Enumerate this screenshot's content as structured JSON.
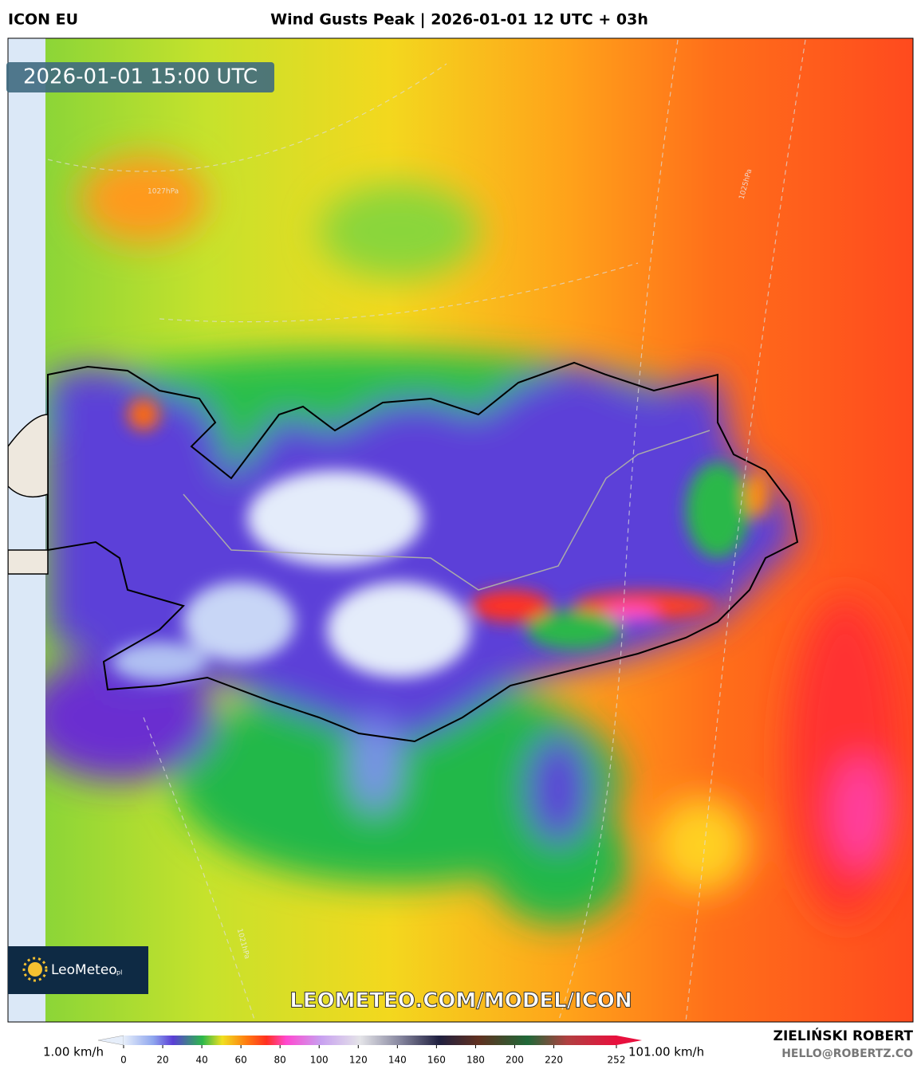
{
  "header": {
    "model": "ICON EU",
    "title": "Wind Gusts Peak | 2026-01-01 12 UTC + 03h"
  },
  "map": {
    "timestamp": "2026-01-01 15:00 UTC",
    "watermark": "LEOMETEO.COM/MODEL/ICON",
    "logo": {
      "name": "LeoMeteo",
      "suffix": "pl"
    },
    "isobar_labels": [
      "1027hPa",
      "1025hPa",
      "1021hPa"
    ]
  },
  "colorbar": {
    "min_label": "1.00 km/h",
    "max_label": "101.00 km/h",
    "range": [
      0,
      252
    ],
    "ticks": [
      0,
      20,
      40,
      60,
      80,
      100,
      120,
      140,
      160,
      180,
      200,
      220,
      252
    ]
  },
  "credit": {
    "author": "ZIELIŃSKI ROBERT",
    "email": "HELLO@ROBERTZ.CO"
  }
}
